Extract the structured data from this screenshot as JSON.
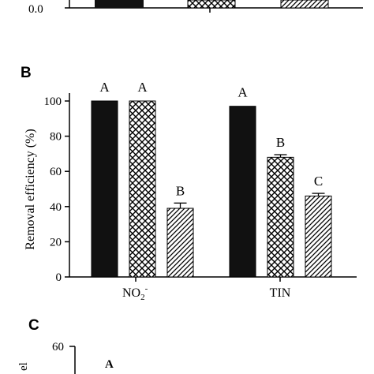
{
  "panel_letters": [
    "B",
    "C"
  ],
  "top_fragment": {
    "tick_label": "0.0"
  },
  "bottom_fragment": {
    "tick_label": "60",
    "letter": "A",
    "ylabel_fragment": "el"
  },
  "chart_data": {
    "type": "bar",
    "panel": "B",
    "ylabel": "Removal efficiency (%)",
    "xlabel": "",
    "ylim": [
      0,
      100
    ],
    "yticks": [
      "0",
      "20",
      "40",
      "60",
      "80",
      "100"
    ],
    "groups": [
      "NO2-",
      "TIN"
    ],
    "series": [
      {
        "fill": "solid",
        "color": "#111111",
        "values": [
          100,
          97
        ],
        "errors": [
          0,
          0
        ],
        "letters": [
          "A",
          "A"
        ]
      },
      {
        "fill": "crosshatch",
        "color": "#111111",
        "values": [
          100,
          68
        ],
        "errors": [
          0,
          1.5
        ],
        "letters": [
          "A",
          "B"
        ]
      },
      {
        "fill": "diagonal",
        "color": "#111111",
        "values": [
          39,
          46
        ],
        "errors": [
          3,
          1.5
        ],
        "letters": [
          "B",
          "C"
        ]
      }
    ]
  }
}
